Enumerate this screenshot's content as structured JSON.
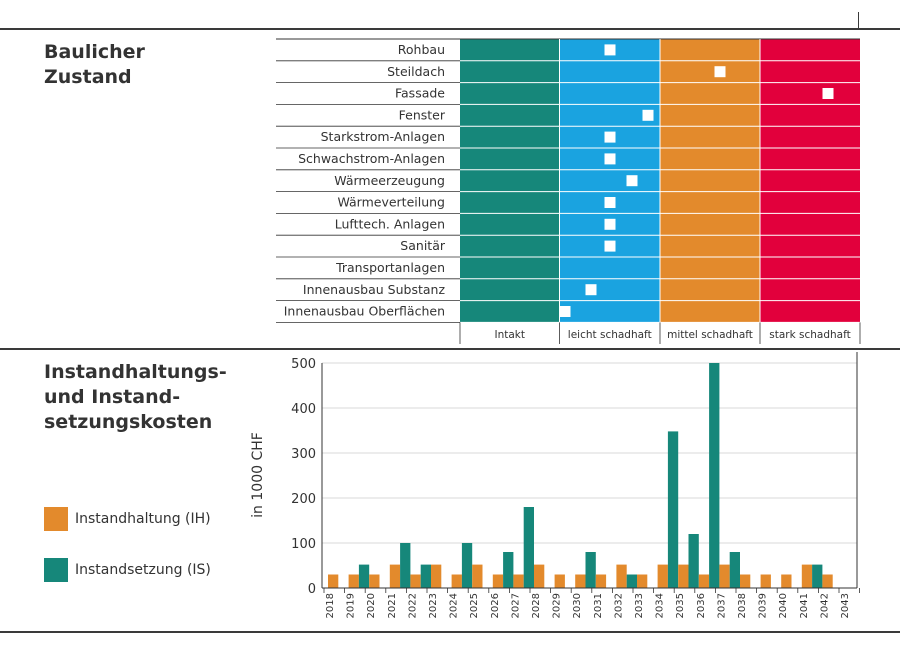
{
  "sections": {
    "condition_title": [
      "Baulicher",
      "Zustand"
    ],
    "costs_title": [
      "Instandhaltungs-",
      "und Instand-",
      "setzungskosten"
    ]
  },
  "legend": [
    {
      "label": "Instandhaltung (IH)",
      "color": "#e38a2c"
    },
    {
      "label": "Instandsetzung (IS)",
      "color": "#16877a"
    }
  ],
  "chart_data": [
    {
      "type": "heatmap",
      "categories": [
        "Rohbau",
        "Steildach",
        "Fassade",
        "Fenster",
        "Starkstrom-Anlagen",
        "Schwachstrom-Anlagen",
        "Wärmeerzeugung",
        "Wärmeverteilung",
        "Lufttech. Anlagen",
        "Sanitär",
        "Transportanlagen",
        "Innenausbau Substanz",
        "Innenausbau Oberflächen"
      ],
      "condition_levels": [
        "Intakt",
        "leicht schadhaft",
        "mittel schadhaft",
        "stark schadhaft"
      ],
      "level_colors": [
        "#16877a",
        "#1aa3e0",
        "#e38a2c",
        "#e2003c"
      ],
      "marker_position": [
        1.5,
        2.6,
        3.68,
        1.88,
        1.5,
        1.5,
        1.72,
        1.5,
        1.5,
        1.5,
        null,
        1.31,
        1.05
      ]
    },
    {
      "type": "bar",
      "ylabel": "in 1000 CHF",
      "ylim": [
        0,
        500
      ],
      "yticks": [
        0,
        100,
        200,
        300,
        400,
        500
      ],
      "grid": true,
      "categories": [
        "2018",
        "2019",
        "2020",
        "2021",
        "2022",
        "2023",
        "2024",
        "2025",
        "2026",
        "2027",
        "2028",
        "2029",
        "2030",
        "2031",
        "2032",
        "2033",
        "2034",
        "2035",
        "2036",
        "2037",
        "2038",
        "2039",
        "2040",
        "2041",
        "2042",
        "2043"
      ],
      "series": [
        {
          "name": "Instandhaltung (IH)",
          "color": "#e38a2c",
          "values": [
            30,
            30,
            30,
            52,
            30,
            52,
            30,
            52,
            30,
            30,
            52,
            30,
            30,
            30,
            52,
            30,
            52,
            52,
            30,
            52,
            30,
            30,
            30,
            52,
            30,
            0
          ]
        },
        {
          "name": "Instandsetzung (IS)",
          "color": "#16877a",
          "values": [
            0,
            52,
            0,
            100,
            52,
            0,
            100,
            0,
            80,
            180,
            0,
            0,
            80,
            0,
            30,
            0,
            348,
            120,
            500,
            80,
            0,
            0,
            0,
            52,
            0,
            0
          ]
        }
      ]
    }
  ]
}
